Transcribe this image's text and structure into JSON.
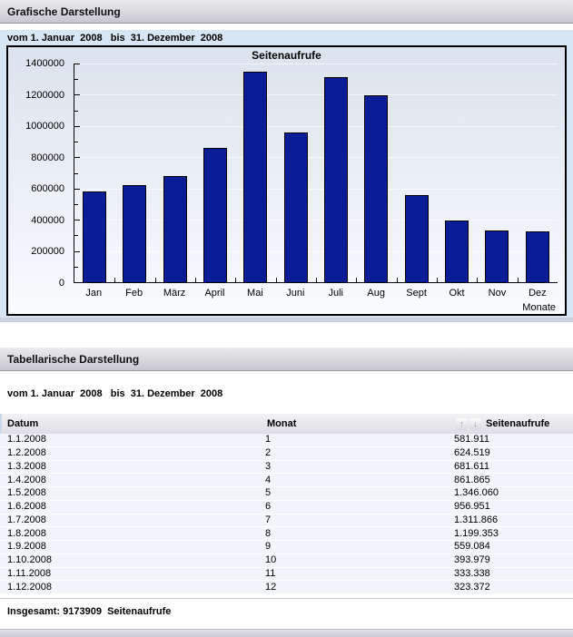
{
  "graph_section": {
    "header": "Grafische Darstellung",
    "date_range": "vom 1. Januar  2008   bis  31. Dezember  2008"
  },
  "chart_data": {
    "type": "bar",
    "title": "Seitenaufrufe",
    "categories": [
      "Jan",
      "Feb",
      "März",
      "April",
      "Mai",
      "Juni",
      "Juli",
      "Aug",
      "Sept",
      "Okt",
      "Nov",
      "Dez"
    ],
    "values": [
      581911,
      624519,
      681611,
      861865,
      1346060,
      956951,
      1311866,
      1199353,
      559084,
      393979,
      333338,
      323372
    ],
    "xlabel": "Monate",
    "ylabel": "",
    "ylim": [
      0,
      1400000
    ],
    "ytick_step": 200000,
    "grid": true,
    "legend": "none",
    "bar_color": "#0a1c96",
    "plot_bg_top": "#dbe3ee",
    "plot_bg_bottom": "#f9fbfe"
  },
  "table_section": {
    "header": "Tabellarische Darstellung",
    "date_range": "vom 1. Januar  2008   bis  31. Dezember  2008",
    "columns": {
      "datum": "Datum",
      "monat": "Monat",
      "seitenaufrufe": "Seitenaufrufe"
    },
    "sort_icons": {
      "ascending": "↑",
      "descending": "↓"
    },
    "rows": [
      [
        "1.1.2008",
        "1",
        "581.911"
      ],
      [
        "1.2.2008",
        "2",
        "624.519"
      ],
      [
        "1.3.2008",
        "3",
        "681.611"
      ],
      [
        "1.4.2008",
        "4",
        "861.865"
      ],
      [
        "1.5.2008",
        "5",
        "1.346.060"
      ],
      [
        "1.6.2008",
        "6",
        "956.951"
      ],
      [
        "1.7.2008",
        "7",
        "1.311.866"
      ],
      [
        "1.8.2008",
        "8",
        "1.199.353"
      ],
      [
        "1.9.2008",
        "9",
        "559.084"
      ],
      [
        "1.10.2008",
        "10",
        "393.979"
      ],
      [
        "1.11.2008",
        "11",
        "333.338"
      ],
      [
        "1.12.2008",
        "12",
        "323.372"
      ]
    ],
    "total": "Insgesamt: 9173909  Seitenaufrufe"
  }
}
